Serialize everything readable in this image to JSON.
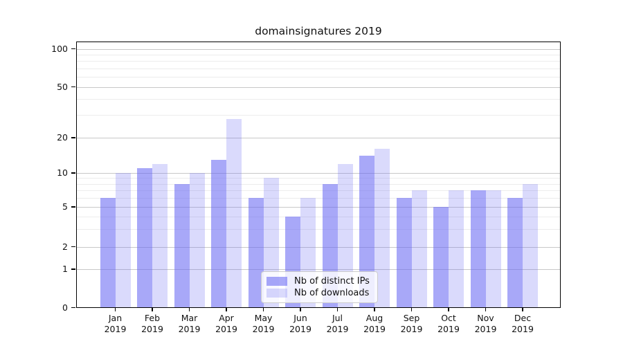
{
  "title": "domainsignatures 2019",
  "colors": {
    "bar_base": "#6666F2",
    "ips_alpha": 0.57,
    "downloads_alpha": 0.24,
    "grid_major": "#c8c8c8",
    "grid_minor": "#ececec",
    "spine": "#000000",
    "background": "#ffffff"
  },
  "chart_data": {
    "type": "bar",
    "title": "domainsignatures 2019",
    "categories": [
      "Jan",
      "Feb",
      "Mar",
      "Apr",
      "May",
      "Jun",
      "Jul",
      "Aug",
      "Sep",
      "Oct",
      "Nov",
      "Dec"
    ],
    "year_label": "2019",
    "series": [
      {
        "name": "Nb of distinct IPs",
        "values": [
          6,
          11,
          8,
          13,
          6,
          4,
          8,
          14,
          6,
          5,
          7,
          6
        ]
      },
      {
        "name": "Nb of downloads",
        "values": [
          10,
          12,
          10,
          28,
          9,
          6,
          12,
          16,
          7,
          7,
          7,
          8
        ]
      }
    ],
    "xlabel": "",
    "ylabel": "",
    "yscale": "symlog",
    "yticks": [
      0,
      1,
      2,
      5,
      10,
      20,
      50,
      100
    ],
    "yticks_minor": [
      3,
      4,
      6,
      7,
      8,
      9,
      30,
      40,
      60,
      70,
      80,
      90
    ],
    "ylim": [
      0,
      115
    ],
    "grid": true,
    "legend_position": "inside lower-center"
  }
}
